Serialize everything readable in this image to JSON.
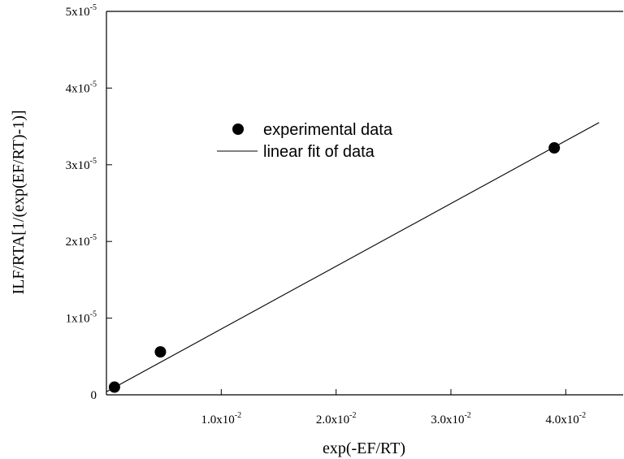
{
  "chart_data": {
    "type": "scatter",
    "xlabel": "exp(-EF/RT)",
    "ylabel": "ILF/RTA[1/(exp(EF/RT)-1)]",
    "xlim": [
      0,
      0.045
    ],
    "ylim": [
      0,
      5e-05
    ],
    "x_ticks": [
      {
        "value": 0.01,
        "mantissa": "1.0x10",
        "exp": "-2"
      },
      {
        "value": 0.02,
        "mantissa": "2.0x10",
        "exp": "-2"
      },
      {
        "value": 0.03,
        "mantissa": "3.0x10",
        "exp": "-2"
      },
      {
        "value": 0.04,
        "mantissa": "4.0x10",
        "exp": "-2"
      }
    ],
    "y_ticks": [
      {
        "value": 0,
        "mantissa": "0",
        "exp": ""
      },
      {
        "value": 1e-05,
        "mantissa": "1x10",
        "exp": "-5"
      },
      {
        "value": 2e-05,
        "mantissa": "2x10",
        "exp": "-5"
      },
      {
        "value": 3e-05,
        "mantissa": "3x10",
        "exp": "-5"
      },
      {
        "value": 4e-05,
        "mantissa": "4x10",
        "exp": "-5"
      },
      {
        "value": 5e-05,
        "mantissa": "5x10",
        "exp": "-5"
      }
    ],
    "series": [
      {
        "name": "experimental data",
        "kind": "scatter",
        "color": "#000000",
        "points": [
          {
            "x": 0.0007,
            "y": 1e-06
          },
          {
            "x": 0.0047,
            "y": 5.6e-06
          },
          {
            "x": 0.039,
            "y": 3.22e-05
          }
        ]
      },
      {
        "name": "linear fit of data",
        "kind": "line",
        "color": "#000000",
        "points": [
          {
            "x": 0.0,
            "y": 4e-07
          },
          {
            "x": 0.0429,
            "y": 3.55e-05
          }
        ]
      }
    ],
    "legend_position": "upper-middle",
    "grid": false
  }
}
